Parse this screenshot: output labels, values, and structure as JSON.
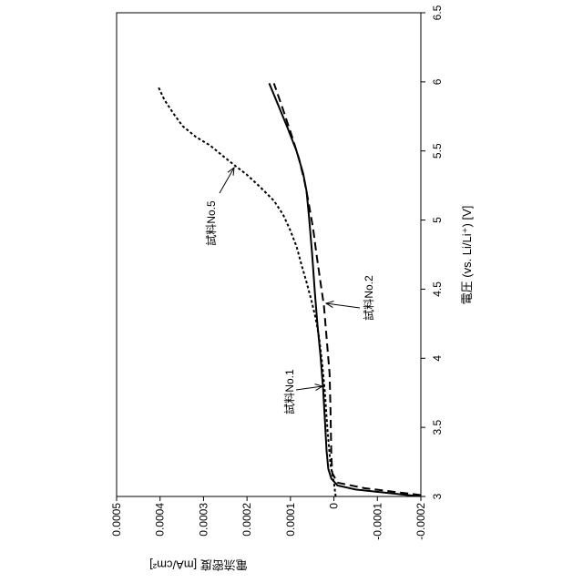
{
  "chart_data": {
    "type": "line",
    "xlabel": "電圧 (vs. Li/Li⁺) [V]",
    "ylabel": "電流密度 [mA/cm²]",
    "xlim": [
      3,
      6.5
    ],
    "ylim": [
      -0.0002,
      0.0005
    ],
    "x_ticks": [
      "3",
      "3.5",
      "4",
      "4.5",
      "5",
      "5.5",
      "6",
      "6.5"
    ],
    "y_ticks": [
      "-0.0002",
      "-0.0001",
      "0",
      "0.0001",
      "0.0002",
      "0.0003",
      "0.0004",
      "0.0005"
    ],
    "grid": false,
    "series": [
      {
        "name": "試料No.1",
        "color": "#000000",
        "x": [
          3.0,
          3.05,
          3.08,
          3.13,
          3.2,
          3.33,
          3.56,
          3.79,
          4.02,
          4.25,
          4.48,
          4.75,
          5.01,
          5.21,
          5.34,
          5.5,
          5.67,
          5.83,
          5.99
        ],
        "y": [
          -0.0002,
          -5e-05,
          -8e-06,
          6e-06,
          1.3e-05,
          1.7e-05,
          2.1e-05,
          2.5e-05,
          3.1e-05,
          3.8e-05,
          4.4e-05,
          5e-05,
          5.7e-05,
          6.3e-05,
          7.1e-05,
          8.6e-05,
          0.000107,
          0.000128,
          0.000149
        ]
      },
      {
        "name": "試料No.2",
        "color": "#000000",
        "x": [
          3.01,
          3.06,
          3.1,
          3.17,
          3.3,
          3.63,
          3.89,
          4.15,
          4.38,
          4.55,
          4.75,
          4.94,
          5.14,
          5.27,
          5.44,
          5.6,
          5.8,
          5.99
        ],
        "y": [
          -0.0002,
          -7e-05,
          -8e-06,
          4e-06,
          6e-06,
          8e-06,
          1e-05,
          1.7e-05,
          2.3e-05,
          3.1e-05,
          4e-05,
          4.8e-05,
          5.9e-05,
          6.7e-05,
          8e-05,
          9.6e-05,
          0.000117,
          0.000138
        ]
      },
      {
        "name": "試料No.5",
        "color": "#000000",
        "x": [
          3.0,
          3.1,
          3.23,
          3.49,
          3.76,
          3.96,
          4.15,
          4.29,
          4.42,
          4.55,
          4.68,
          4.81,
          4.93,
          5.04,
          5.14,
          5.24,
          5.33,
          5.39,
          5.46,
          5.54,
          5.6,
          5.68,
          5.77,
          5.87,
          5.97
        ],
        "y": [
          -4e-06,
          0,
          8e-06,
          1.5e-05,
          2.1e-05,
          2.7e-05,
          3.4e-05,
          4.2e-05,
          5.2e-05,
          6.3e-05,
          7.5e-05,
          8.6e-05,
          0.000101,
          0.000117,
          0.000138,
          0.00017,
          0.000201,
          0.000226,
          0.000254,
          0.000285,
          0.000317,
          0.000348,
          0.000369,
          0.00039,
          0.000405
        ]
      }
    ]
  }
}
